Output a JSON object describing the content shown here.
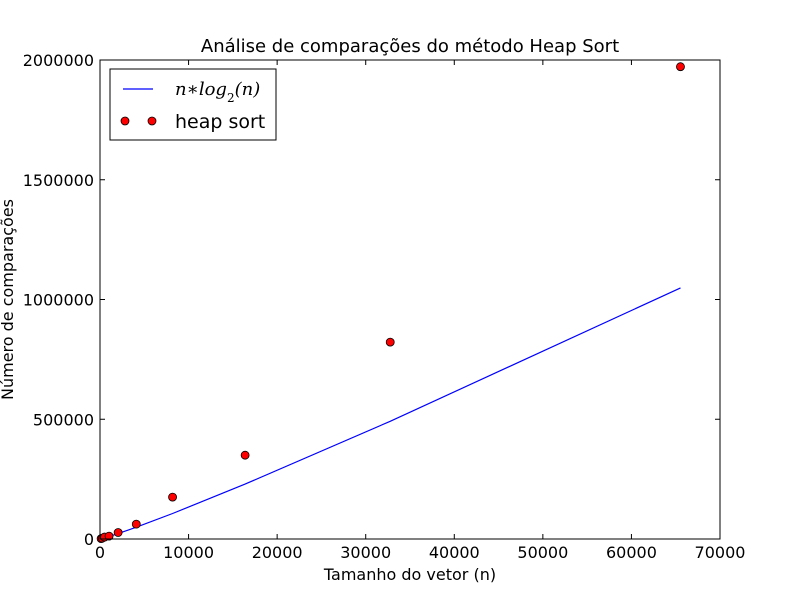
{
  "chart_data": {
    "type": "scatter",
    "title": "Análise de comparações do método Heap Sort",
    "xlabel": "Tamanho do vetor (n)",
    "ylabel": "Número de comparações",
    "xlim": [
      0,
      70000
    ],
    "ylim": [
      0,
      2000000
    ],
    "xticks": [
      0,
      10000,
      20000,
      30000,
      40000,
      50000,
      60000,
      70000
    ],
    "xtick_labels": [
      "0",
      "10000",
      "20000",
      "30000",
      "40000",
      "50000",
      "60000",
      "70000"
    ],
    "yticks": [
      0,
      500000,
      1000000,
      1500000,
      2000000
    ],
    "ytick_labels": [
      "0",
      "500000",
      "1000000",
      "1500000",
      "2000000"
    ],
    "grid": false,
    "legend_position": "top-left",
    "series": [
      {
        "name": "n∗log2(n)",
        "kind": "line",
        "color": "#0000ff",
        "x": [
          128,
          256,
          512,
          1024,
          2048,
          4096,
          8192,
          16384,
          32768,
          65536
        ],
        "y": [
          896,
          2048,
          4608,
          10240,
          22528,
          49152,
          106496,
          229376,
          491520,
          1048576
        ]
      },
      {
        "name": "heap sort",
        "kind": "points",
        "color": "#ff0000",
        "x": [
          128,
          256,
          512,
          1024,
          2048,
          4096,
          8192,
          16384,
          32768,
          65536
        ],
        "y": [
          1500,
          3500,
          8000,
          12000,
          27000,
          62000,
          175000,
          350000,
          822000,
          1972000
        ]
      }
    ]
  }
}
